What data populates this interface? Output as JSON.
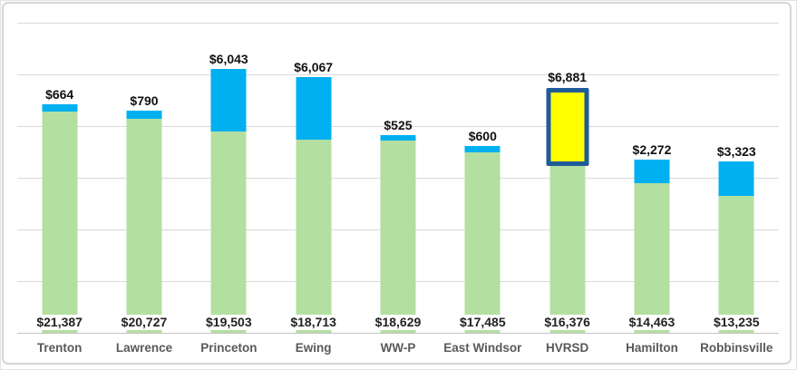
{
  "chart_data": {
    "type": "bar",
    "stacked": true,
    "title": "",
    "xlabel": "",
    "ylabel": "",
    "legend": "none",
    "grid": true,
    "ylim": [
      0,
      30000
    ],
    "gridline_interval": 5000,
    "categories": [
      "Trenton",
      "Lawrence",
      "Princeton",
      "Ewing",
      "WW-P",
      "East Windsor",
      "HVRSD",
      "Hamilton",
      "Robbinsville"
    ],
    "series": [
      {
        "name": "base-amount",
        "color": "#B3DFA1",
        "values": [
          21387,
          20727,
          19503,
          18713,
          18629,
          17485,
          16376,
          14463,
          13235
        ],
        "labels": [
          "$21,387",
          "$20,727",
          "$19,503",
          "$18,713",
          "$18,629",
          "$17,485",
          "$16,376",
          "$14,463",
          "$13,235"
        ]
      },
      {
        "name": "top-amount",
        "color": "#00B0F0",
        "values": [
          664,
          790,
          6043,
          6067,
          525,
          600,
          6881,
          2272,
          3323
        ],
        "labels": [
          "$664",
          "$790",
          "$6,043",
          "$6,067",
          "$525",
          "$600",
          "$6,881",
          "$2,272",
          "$3,323"
        ]
      }
    ],
    "highlight": {
      "category": "HVRSD",
      "fill": "#FFFF00",
      "border_color": "#1F5C99"
    }
  },
  "style_colors": {
    "gridline": "#d9d9d9",
    "axis_line": "#c3c3c3",
    "value_label": "#111111",
    "category_label": "#595959",
    "background": "#ffffff",
    "frame_border": "#d6d6d6"
  }
}
